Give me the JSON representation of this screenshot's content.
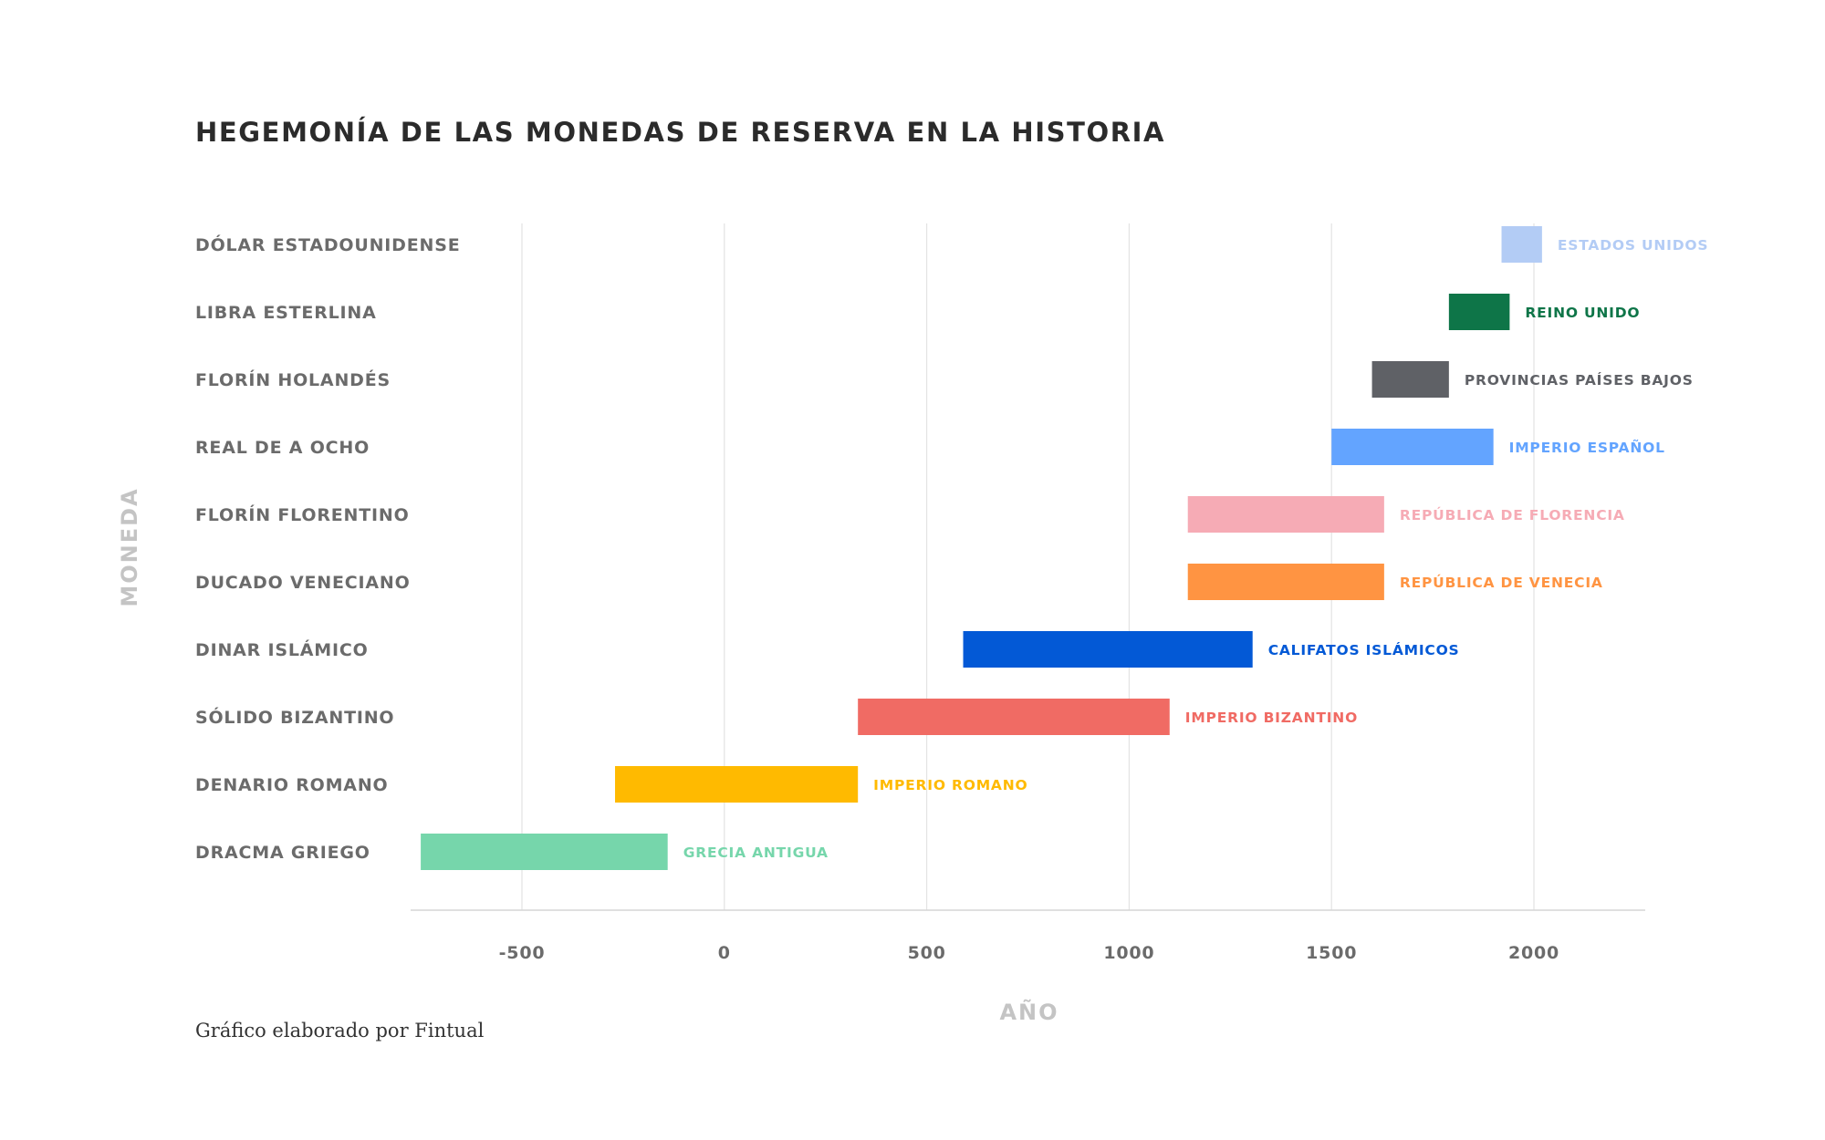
{
  "title": "HEGEMONÍA DE LAS MONEDAS DE RESERVA EN LA HISTORIA",
  "footer": "Gráfico elaborado por Fintual",
  "chart_data": {
    "type": "bar",
    "orientation": "horizontal-range",
    "xlabel": "AÑO",
    "ylabel": "MONEDA",
    "xticks": [
      -500,
      0,
      500,
      1000,
      1500,
      2000
    ],
    "xlim": [
      -775,
      2275
    ],
    "grid": true,
    "items": [
      {
        "category": "DÓLAR ESTADOUNIDENSE",
        "start": 1920,
        "end": 2020,
        "label": "ESTADOS UNIDOS",
        "color": "#b3ccf5"
      },
      {
        "category": "LIBRA ESTERLINA",
        "start": 1790,
        "end": 1940,
        "label": "REINO UNIDO",
        "color": "#0e7548"
      },
      {
        "category": "FLORÍN HOLANDÉS",
        "start": 1600,
        "end": 1790,
        "label": "PROVINCIAS PAÍSES BAJOS",
        "color": "#5f6166"
      },
      {
        "category": "REAL DE A OCHO",
        "start": 1500,
        "end": 1900,
        "label": "IMPERIO ESPAÑOL",
        "color": "#63a4ff"
      },
      {
        "category": "FLORÍN FLORENTINO",
        "start": 1145,
        "end": 1630,
        "label": "REPÚBLICA DE FLORENCIA",
        "color": "#f6abb5"
      },
      {
        "category": "DUCADO VENECIANO",
        "start": 1145,
        "end": 1630,
        "label": "REPÚBLICA DE VENECIA",
        "color": "#ff9442"
      },
      {
        "category": "DINAR ISLÁMICO",
        "start": 590,
        "end": 1305,
        "label": "CALIFATOS ISLÁMICOS",
        "color": "#0359d6"
      },
      {
        "category": "SÓLIDO BIZANTINO",
        "start": 330,
        "end": 1100,
        "label": "IMPERIO BIZANTINO",
        "color": "#f06b64"
      },
      {
        "category": "DENARIO ROMANO",
        "start": -270,
        "end": 330,
        "label": "IMPERIO ROMANO",
        "color": "#ffba00"
      },
      {
        "category": "DRACMA GRIEGO",
        "start": -750,
        "end": -140,
        "label": "GRECIA ANTIGUA",
        "color": "#76d6ab"
      }
    ]
  }
}
